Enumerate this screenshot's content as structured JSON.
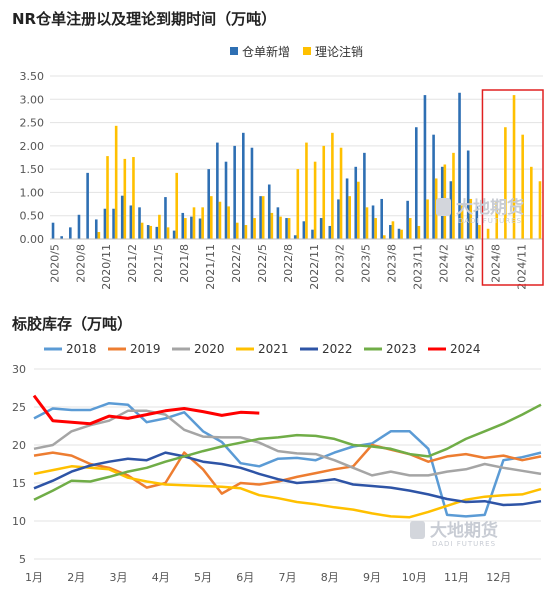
{
  "chart_data": [
    {
      "type": "bar",
      "title": "NR仓单注册以及理论到期时间（万吨）",
      "legend": [
        "仓单新增",
        "理论注销"
      ],
      "legend_position": "top",
      "colors": {
        "仓单新增": "#2e6fb3",
        "理论注销": "#ffc000"
      },
      "ylim": [
        0,
        3.5
      ],
      "yticks": [
        "0.00",
        "0.50",
        "1.00",
        "1.50",
        "2.00",
        "2.50",
        "3.00",
        "3.50"
      ],
      "xticks": [
        "2020/5",
        "2020/8",
        "2020/11",
        "2021/2",
        "2021/5",
        "2021/8",
        "2021/11",
        "2022/2",
        "2022/5",
        "2022/8",
        "2022/11",
        "2023/2",
        "2023/5",
        "2023/8",
        "2023/11",
        "2024/2",
        "2024/5",
        "2024/8",
        "2024/11"
      ],
      "highlight_range": [
        "2024/8",
        "2024/11"
      ],
      "pairs": [
        [
          0.35,
          0
        ],
        [
          0.06,
          0
        ],
        [
          0.25,
          0
        ],
        [
          0.52,
          0
        ],
        [
          1.42,
          0
        ],
        [
          0.42,
          0.15
        ],
        [
          0.65,
          1.78
        ],
        [
          0.65,
          2.43
        ],
        [
          0.93,
          1.72
        ],
        [
          0.72,
          1.76
        ],
        [
          0.68,
          0.35
        ],
        [
          0.3,
          0.28
        ],
        [
          0.26,
          0.52
        ],
        [
          0.9,
          0.25
        ],
        [
          0.18,
          1.42
        ],
        [
          0.56,
          0.45
        ],
        [
          0.48,
          0.68
        ],
        [
          0.44,
          0.68
        ],
        [
          1.5,
          0.92
        ],
        [
          2.07,
          0.8
        ],
        [
          1.66,
          0.7
        ],
        [
          2.0,
          0.35
        ],
        [
          2.28,
          0.3
        ],
        [
          1.96,
          0.45
        ],
        [
          0.92,
          0.92
        ],
        [
          1.17,
          0.56
        ],
        [
          0.68,
          0.48
        ],
        [
          0.45,
          0.45
        ],
        [
          0.08,
          1.5
        ],
        [
          0.38,
          2.07
        ],
        [
          0.2,
          1.66
        ],
        [
          0.45,
          2.0
        ],
        [
          0.28,
          2.28
        ],
        [
          0.85,
          1.96
        ],
        [
          1.3,
          0.92
        ],
        [
          1.55,
          1.23
        ],
        [
          1.85,
          0.68
        ],
        [
          0.72,
          0.45
        ],
        [
          0.86,
          0.08
        ],
        [
          0.3,
          0.38
        ],
        [
          0.22,
          0.2
        ],
        [
          0.82,
          0.45
        ],
        [
          2.4,
          0.28
        ],
        [
          3.09,
          0.85
        ],
        [
          2.24,
          1.3
        ],
        [
          1.55,
          1.6
        ],
        [
          1.24,
          1.85
        ],
        [
          3.14,
          0.72
        ],
        [
          1.9,
          0.86
        ],
        [
          0.7,
          0.3
        ],
        [
          0,
          0.22
        ],
        [
          0,
          0.82
        ],
        [
          0,
          2.4
        ],
        [
          0,
          3.09
        ],
        [
          0,
          2.24
        ],
        [
          0,
          1.55
        ],
        [
          0,
          1.24
        ]
      ]
    },
    {
      "type": "line",
      "title": "标胶库存（万吨）",
      "legend_position": "top",
      "ylim": [
        5,
        30
      ],
      "yticks": [
        "5",
        "10",
        "15",
        "20",
        "25",
        "30"
      ],
      "xticks": [
        "1月",
        "2月",
        "3月",
        "4月",
        "5月",
        "6月",
        "7月",
        "8月",
        "9月",
        "10月",
        "11月",
        "12月"
      ],
      "series": [
        {
          "name": "2018",
          "color": "#5b9bd5",
          "values": [
            23.5,
            24.8,
            24.6,
            24.6,
            25.5,
            25.3,
            23.0,
            23.5,
            24.3,
            21.8,
            20.4,
            17.6,
            17.2,
            18.2,
            18.3,
            18.0,
            19.0,
            19.8,
            20.2,
            21.8,
            21.8,
            19.5,
            10.8,
            10.6,
            10.8,
            18.0,
            18.4,
            19.0
          ]
        },
        {
          "name": "2019",
          "color": "#ed7d31",
          "values": [
            18.6,
            19.0,
            18.6,
            17.5,
            17.0,
            16.0,
            14.4,
            15.0,
            19.0,
            16.8,
            13.6,
            15.0,
            14.8,
            15.2,
            15.8,
            16.3,
            16.8,
            17.2,
            20.0,
            19.4,
            18.8,
            17.8,
            18.5,
            18.8,
            18.3,
            18.6,
            18.0,
            18.5
          ]
        },
        {
          "name": "2020",
          "color": "#a5a5a5",
          "values": [
            19.5,
            20.0,
            21.8,
            22.6,
            23.2,
            24.5,
            24.5,
            24.0,
            22.0,
            21.1,
            21.0,
            21.0,
            20.3,
            19.2,
            18.9,
            18.8,
            18.0,
            17.0,
            16.0,
            16.5,
            16.0,
            16.0,
            16.5,
            16.8,
            17.5,
            17.0,
            16.6,
            16.2
          ]
        },
        {
          "name": "2021",
          "color": "#ffc000",
          "values": [
            16.2,
            16.7,
            17.2,
            17.0,
            16.8,
            15.7,
            15.2,
            14.8,
            14.7,
            14.6,
            14.5,
            14.3,
            13.4,
            13.0,
            12.5,
            12.2,
            11.8,
            11.5,
            11.0,
            10.6,
            10.5,
            11.2,
            12.0,
            12.8,
            13.2,
            13.4,
            13.5,
            14.2
          ]
        },
        {
          "name": "2022",
          "color": "#2e54a6",
          "values": [
            14.3,
            15.3,
            16.5,
            17.3,
            17.8,
            18.2,
            18.0,
            19.0,
            18.5,
            17.8,
            17.5,
            17.0,
            16.2,
            15.5,
            15.0,
            15.2,
            15.5,
            14.8,
            14.6,
            14.4,
            14.0,
            13.5,
            12.9,
            12.5,
            12.6,
            12.1,
            12.2,
            12.6
          ]
        },
        {
          "name": "2023",
          "color": "#70ad47",
          "values": [
            12.8,
            14.0,
            15.3,
            15.2,
            15.8,
            16.5,
            17.0,
            17.8,
            18.5,
            19.2,
            19.8,
            20.3,
            20.8,
            21.0,
            21.3,
            21.2,
            20.8,
            20.0,
            19.8,
            19.5,
            18.8,
            18.5,
            19.5,
            20.8,
            21.8,
            22.8,
            24.0,
            25.3
          ]
        },
        {
          "name": "2024",
          "color": "#ff0000",
          "values": [
            26.5,
            23.2,
            23.0,
            22.8,
            23.8,
            23.5,
            24.0,
            24.5,
            24.8,
            24.4,
            23.9,
            24.3,
            24.2
          ]
        }
      ]
    }
  ],
  "watermark": {
    "name": "大地期货",
    "sub": "DADI FUTURES"
  }
}
